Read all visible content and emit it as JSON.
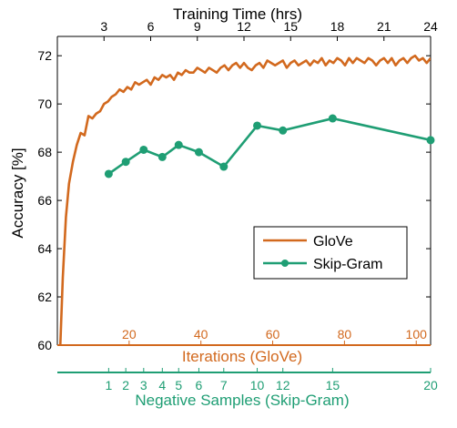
{
  "chart_data": {
    "type": "line",
    "top_axis": {
      "label": "Training Time (hrs)",
      "ticks": [
        3,
        6,
        9,
        12,
        15,
        18,
        21,
        24
      ],
      "range": [
        0,
        24
      ]
    },
    "y_axis": {
      "label": "Accuracy [%]",
      "ticks": [
        60,
        62,
        64,
        66,
        68,
        70,
        72
      ],
      "range": [
        60,
        72.8
      ]
    },
    "bottom_axis_glove": {
      "label": "Iterations (GloVe)",
      "ticks": [
        20,
        40,
        60,
        80,
        100
      ],
      "color": "#D2691E"
    },
    "bottom_axis_skipgram": {
      "label": "Negative Samples (Skip-Gram)",
      "ticks": [
        1,
        2,
        3,
        4,
        5,
        6,
        7,
        10,
        12,
        15,
        20
      ],
      "color": "#1F9E74"
    },
    "legend": {
      "position": "lower-right",
      "entries": [
        "GloVe",
        "Skip-Gram"
      ]
    },
    "series": [
      {
        "name": "GloVe",
        "color": "#D2691E",
        "marker": "none",
        "x": [
          0.19,
          0.35,
          0.55,
          0.75,
          1.0,
          1.25,
          1.5,
          1.75,
          2.0,
          2.25,
          2.5,
          2.75,
          3.0,
          3.25,
          3.5,
          3.75,
          4.0,
          4.25,
          4.5,
          4.75,
          5.0,
          5.25,
          5.5,
          5.75,
          6.0,
          6.25,
          6.5,
          6.75,
          7.0,
          7.25,
          7.5,
          7.75,
          8.0,
          8.25,
          8.5,
          8.75,
          9.0,
          9.25,
          9.5,
          9.75,
          10.0,
          10.25,
          10.5,
          10.75,
          11.0,
          11.25,
          11.5,
          11.75,
          12.0,
          12.25,
          12.5,
          12.75,
          13.0,
          13.25,
          13.5,
          13.75,
          14.0,
          14.25,
          14.5,
          14.75,
          15.0,
          15.25,
          15.5,
          15.75,
          16.0,
          16.25,
          16.5,
          16.75,
          17.0,
          17.25,
          17.5,
          17.75,
          18.0,
          18.25,
          18.5,
          18.75,
          19.0,
          19.25,
          19.5,
          19.75,
          20.0,
          20.25,
          20.5,
          20.75,
          21.0,
          21.25,
          21.5,
          21.75,
          22.0,
          22.25,
          22.5,
          22.75,
          23.0,
          23.25,
          23.5,
          23.75,
          24.0
        ],
        "values": [
          60.0,
          62.8,
          65.3,
          66.7,
          67.6,
          68.3,
          68.8,
          68.7,
          69.5,
          69.4,
          69.6,
          69.7,
          70.0,
          70.1,
          70.3,
          70.4,
          70.6,
          70.5,
          70.7,
          70.6,
          70.9,
          70.8,
          70.9,
          71.0,
          70.8,
          71.1,
          71.0,
          71.2,
          71.1,
          71.2,
          71.0,
          71.3,
          71.2,
          71.4,
          71.3,
          71.3,
          71.5,
          71.4,
          71.3,
          71.5,
          71.4,
          71.3,
          71.5,
          71.6,
          71.4,
          71.6,
          71.7,
          71.5,
          71.7,
          71.5,
          71.4,
          71.6,
          71.7,
          71.5,
          71.8,
          71.7,
          71.6,
          71.7,
          71.8,
          71.5,
          71.7,
          71.8,
          71.6,
          71.7,
          71.8,
          71.6,
          71.8,
          71.7,
          71.9,
          71.6,
          71.8,
          71.7,
          71.9,
          71.8,
          71.6,
          71.9,
          71.7,
          71.9,
          71.8,
          71.7,
          71.9,
          71.8,
          71.6,
          71.8,
          71.9,
          71.7,
          71.9,
          71.6,
          71.8,
          71.9,
          71.7,
          71.9,
          72.0,
          71.8,
          71.9,
          71.7,
          71.9
        ]
      },
      {
        "name": "Skip-Gram",
        "color": "#1F9E74",
        "marker": "circle",
        "x": [
          3.3,
          4.4,
          5.55,
          6.75,
          7.8,
          9.1,
          10.7,
          12.85,
          14.5,
          17.7,
          24.0
        ],
        "values": [
          67.1,
          67.6,
          68.1,
          67.8,
          68.3,
          68.0,
          67.4,
          69.1,
          68.9,
          69.4,
          68.5
        ]
      }
    ]
  }
}
